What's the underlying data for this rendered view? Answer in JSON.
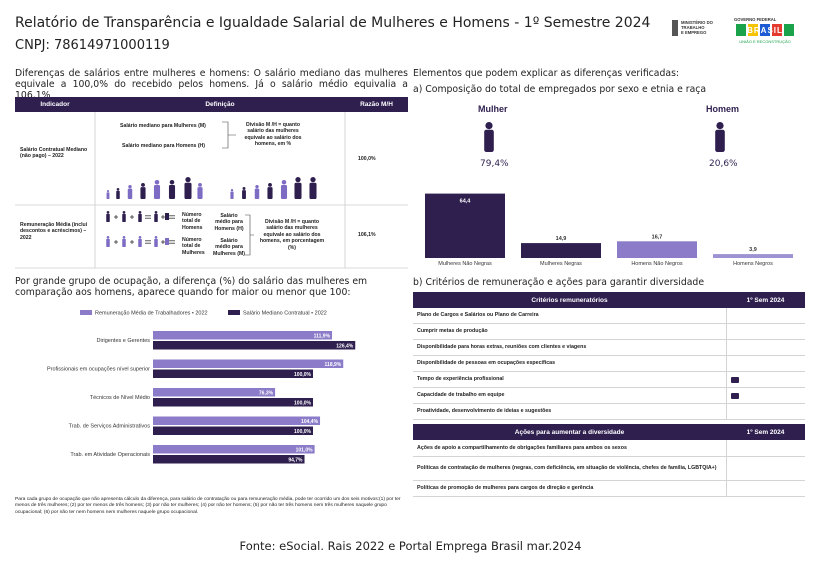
{
  "header": {
    "title": "Relatório de Transparência e Igualdade Salarial de Mulheres e Homens - 1º Semestre 2024",
    "cnpj": "CNPJ: 78614971000119",
    "ministry": [
      "MINISTÉRIO DO",
      "TRABALHO",
      "E EMPREGO"
    ],
    "gov": [
      "GOVERNO FEDERAL",
      "BRASIL",
      "UNIÃO E RECONSTRUÇÃO"
    ]
  },
  "salary_intro": "Diferenças de salários entre mulheres e homens: O salário mediano das mulheres equivale a 100,0% do recebido pelos homens. Já o salário médio equivalia a 106,1%",
  "indicator_table": {
    "header": [
      "Indicador",
      "Definição",
      "Razão M/H"
    ],
    "rows": [
      {
        "indicator": "Salário Contratual Mediano (não pago) – 2022",
        "definition": [
          "Salário mediano para Mulheres (M)",
          "Salário mediano para Homens (H)",
          "Divisão M /H = quanto salário das mulheres equivale ao salário dos homens, em %"
        ],
        "ratio": "100,0%"
      },
      {
        "indicator": "Remuneração Média (inclui descontos e acréscimos) – 2022",
        "definition": [
          "Número total de Homens",
          "Salário médio para Homens (H)",
          "Número total de Mulheres",
          "Salário médio para Mulheres (M)",
          "Divisão M /H = quanto salário das mulheres equivale ao salário dos homens, em porcentagem (%)"
        ],
        "ratio": "106,1%"
      }
    ]
  },
  "occupation_chart": {
    "type": "bar",
    "orientation": "horizontal",
    "title": "Por grande grupo de ocupação, a diferença (%) do salário das mulheres em comparação aos homens, aparece quando for maior ou menor que 100:",
    "categories": [
      "Dirigentes e Gerentes",
      "Profissionais em ocupações nível superior",
      "Técnicos de Nível Médio",
      "Trab. de Serviços Administrativos",
      "Trab. em Atividade Operacionais"
    ],
    "series": [
      {
        "name": "Remuneração Média de Trabalhadores • 2022",
        "color": "#8b7bc8",
        "values": [
          111.9,
          118.9,
          76.3,
          104.4,
          101.0
        ],
        "value_labels": [
          "111,9%",
          "118,9%",
          "76,3%",
          "104,4%",
          "101,0%"
        ]
      },
      {
        "name": "Salário Mediano Contratual • 2022",
        "color": "#2e1f4f",
        "values": [
          126.4,
          100.0,
          100.0,
          100.0,
          94.7
        ],
        "value_labels": [
          "126,4%",
          "100,0%",
          "100,0%",
          "100,0%",
          "94,7%"
        ]
      }
    ],
    "note": "Para cada grupo de ocupação que não apresenta cálculo da diferença, para salário de contratação ou para remuneração média, pode ter ocorrido um dos seis motivos:(1) por ter menos de três mulheres; (2) por ter menos de três homens; (3) por não ter mulheres; (4) por não ter homens; (5) por não ter três homens nem três mulheres naquele grupo ocupacional; (6) por não ter nem homens nem mulheres naquele grupo ocupacional."
  },
  "elements_title": "Elementos que podem explicar as diferenças verificadas:",
  "composition": {
    "title": "a) Composição do total de empregados por sexo e etnia e raça",
    "sexes": [
      {
        "label": "Mulher",
        "share": "79,4%"
      },
      {
        "label": "Homem",
        "share": "20,6%"
      }
    ],
    "chart": {
      "type": "bar",
      "categories": [
        "Mulheres Não Negras",
        "Mulheres Negras",
        "Homens Não Negros",
        "Homens Negros"
      ],
      "values": [
        64.4,
        14.9,
        16.7,
        3.9
      ],
      "value_labels": [
        "64,4",
        "14,9",
        "16,7",
        "3,9"
      ],
      "colors": [
        "#2e1f4f",
        "#2e1f4f",
        "#8b7bc8",
        "#9d92d2"
      ]
    }
  },
  "criteria_title": "b) Critérios de remuneração e ações para garantir diversidade",
  "criteria_table": {
    "header": [
      "Critérios remuneratórios",
      "1º Sem 2024"
    ],
    "rows": [
      "Plano de Cargos e Salários ou Plano de Carreira",
      "Cumprir metas de produção",
      "Disponibilidade para horas extras, reuniões com clientes e viagens",
      "Disponibilidade de pessoas em ocupações específicas",
      "Tempo de experiência profissional",
      "Capacidade de trabalho em equipe",
      "Proatividade, desenvolvimento de ideias e sugestões"
    ]
  },
  "diversity_table": {
    "header": [
      "Ações para aumentar a diversidade",
      "1º Sem 2024"
    ],
    "rows": [
      "Ações de apoio a compartilhamento de obrigações familiares para ambos os sexos",
      "Políticas de contratação de mulheres (negras, com deficiência, em situação de violência, chefes de família, LGBTQIA+)",
      "Políticas de promoção de mulheres para cargos de direção e gerência"
    ]
  },
  "source": "Fonte: eSocial. Rais 2022 e Portal Emprega Brasil mar.2024"
}
